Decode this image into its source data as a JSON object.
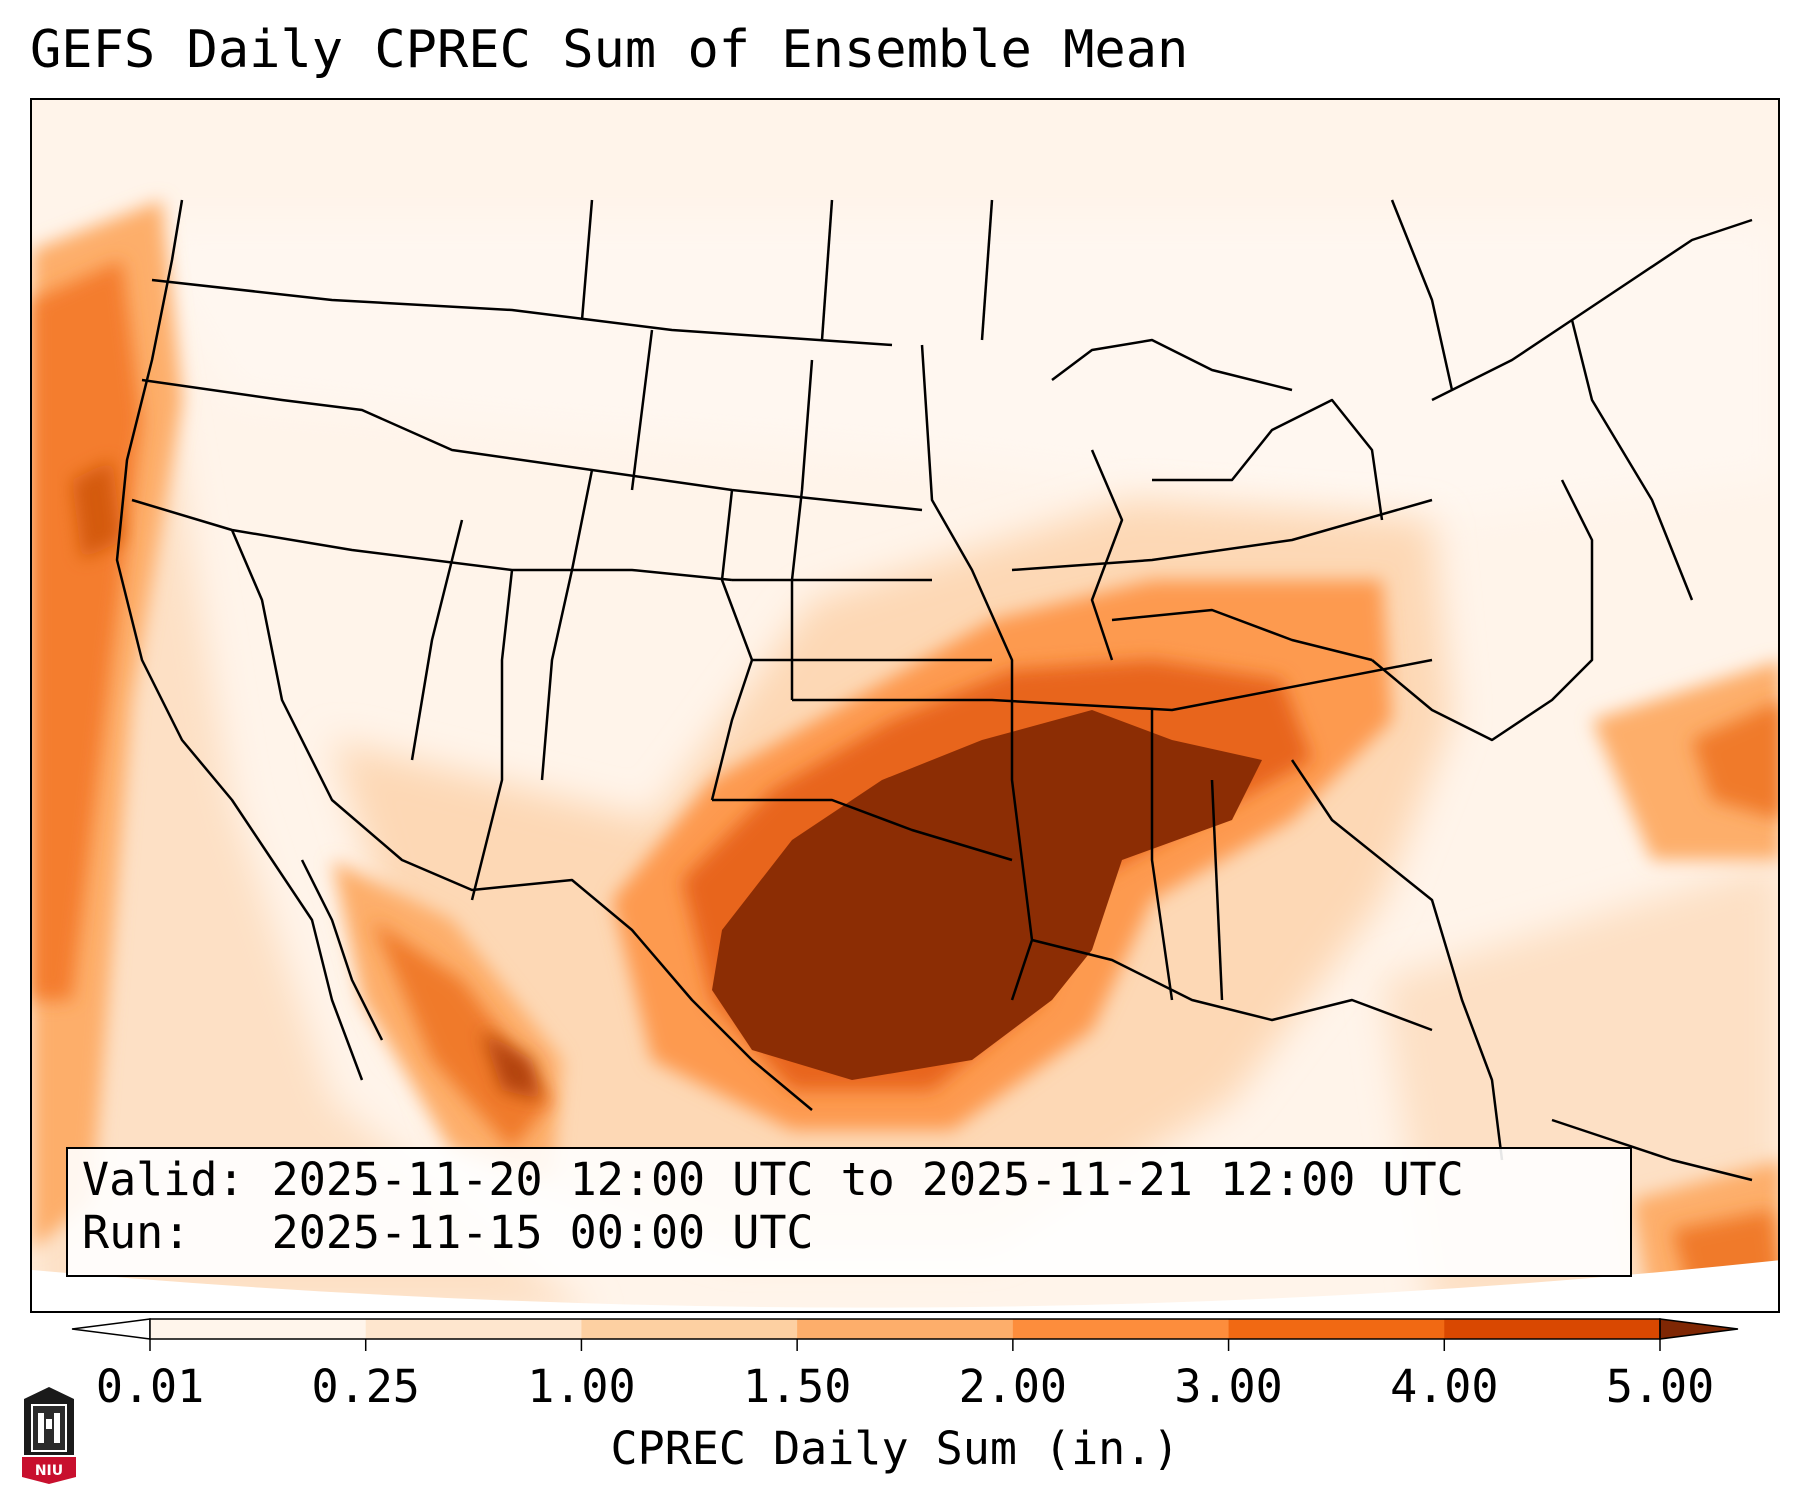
{
  "title": "GEFS Daily CPREC Sum of Ensemble Mean",
  "info": {
    "valid_label": "Valid:",
    "valid_value": "2025-11-20 12:00 UTC to 2025-11-21 12:00 UTC",
    "run_label": "Run:",
    "run_value": "2025-11-15 00:00 UTC"
  },
  "colorbar": {
    "label": "CPREC Daily Sum (in.)",
    "ticks": [
      "0.01",
      "0.25",
      "1.00",
      "1.50",
      "2.00",
      "3.00",
      "4.00",
      "5.00"
    ],
    "colors": [
      "#fff5eb",
      "#fee6ce",
      "#fdd0a2",
      "#fdae6b",
      "#fd8d3c",
      "#f16913",
      "#d94801",
      "#8c2d04"
    ],
    "under_color": "#ffffff",
    "over_color": "#7f2704"
  },
  "logo": {
    "text": "NIU",
    "icon": "university-tower-icon"
  }
}
